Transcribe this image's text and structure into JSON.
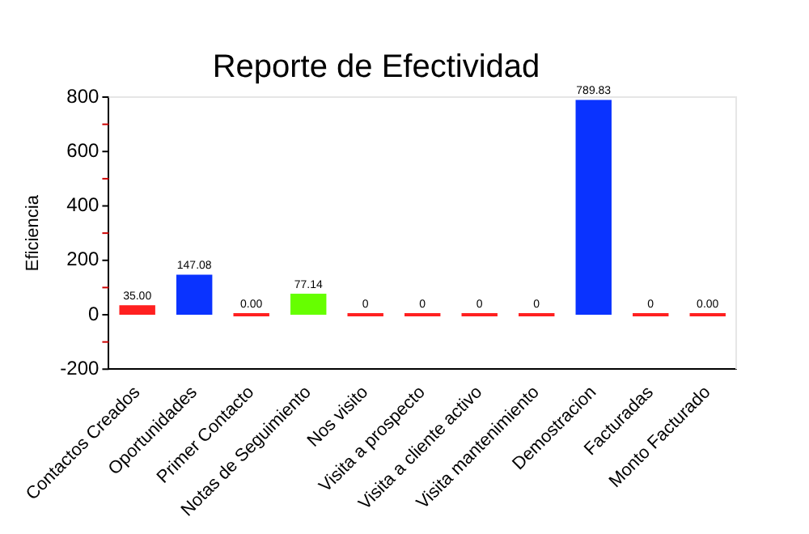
{
  "chart_data": {
    "type": "bar",
    "title": "Reporte de Efectividad",
    "ylabel": "Eficiencia",
    "categories": [
      "Contactos Creados",
      "Oportunidades",
      "Primer Contacto",
      "Notas de Seguimiento",
      "Nos visito",
      "Visita a prospecto",
      "Visita a cliente activo",
      "Visita mantenimiento",
      "Demostracion",
      "Facturadas",
      "Monto Facturado"
    ],
    "values": [
      35,
      147.08,
      0,
      77.14,
      0,
      0,
      0,
      0,
      789.83,
      0,
      0
    ],
    "value_labels": [
      "35.00",
      "147.08",
      "0.00",
      "77.14",
      "0",
      "0",
      "0",
      "0",
      "789.83",
      "0",
      "0.00"
    ],
    "colors": [
      "#ff2020",
      "#0a33ff",
      "#ff2020",
      "#66ff00",
      "#ff2020",
      "#ff2020",
      "#ff2020",
      "#ff2020",
      "#0a33ff",
      "#ff2020",
      "#ff2020"
    ],
    "ylim": [
      -200,
      800
    ],
    "yticks": [
      -200,
      {
        "value": -100,
        "label": null
      },
      0,
      {
        "value": 100,
        "label": null
      },
      200,
      {
        "value": 300,
        "label": null
      },
      400,
      {
        "value": 500,
        "label": null
      },
      600,
      {
        "value": 700,
        "label": null
      },
      800
    ],
    "grid": false,
    "legend": false
  }
}
